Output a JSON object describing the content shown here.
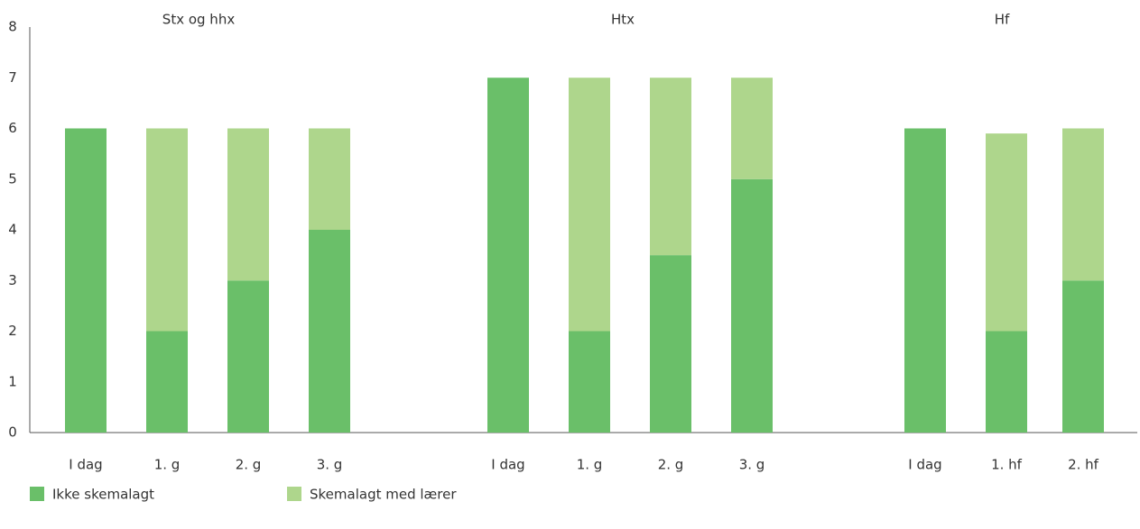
{
  "chart_data": {
    "type": "stacked-bar",
    "groups": [
      {
        "label": "Stx og hhx",
        "categories": [
          "I dag",
          "1. g",
          "2. g",
          "3. g"
        ]
      },
      {
        "label": "Htx",
        "categories": [
          "I dag",
          "1. g",
          "2. g",
          "3. g"
        ]
      },
      {
        "label": "Hf",
        "categories": [
          "I dag",
          "1. hf",
          "2. hf"
        ]
      }
    ],
    "series": [
      {
        "name": "Ikke skemalagt",
        "color": "#6abf69",
        "values": [
          6,
          2,
          3,
          4,
          7,
          2,
          3.5,
          5,
          6,
          2,
          3
        ]
      },
      {
        "name": "Skemalagt med lærer",
        "color": "#aed68c",
        "values": [
          0,
          4,
          3,
          2,
          0,
          5,
          3.5,
          2,
          0,
          3.9,
          3
        ]
      }
    ],
    "ylim": [
      0,
      8
    ],
    "yticks": [
      0,
      1,
      2,
      3,
      4,
      5,
      6,
      7,
      8
    ],
    "legend": "bottom-left"
  }
}
